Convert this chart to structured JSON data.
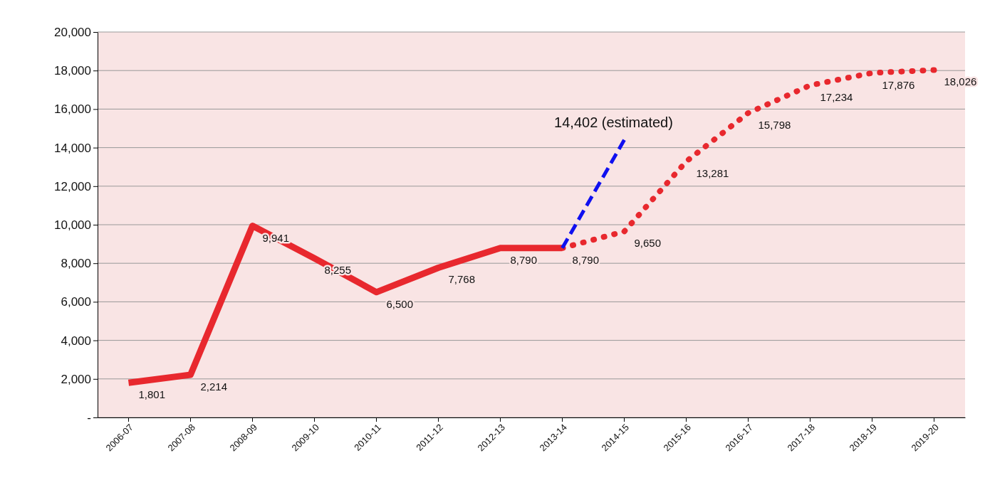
{
  "chart_data": {
    "type": "line",
    "categories": [
      "2006-07",
      "2007-08",
      "2008-09",
      "2009-10",
      "2010-11",
      "2011-12",
      "2012-13",
      "2013-14",
      "2014-15",
      "2015-16",
      "2016-17",
      "2017-18",
      "2018-19",
      "2019-20"
    ],
    "series": [
      {
        "color": "#e8282e",
        "line_style": "solid",
        "values": [
          1801,
          2214,
          9941,
          8255,
          6500,
          7768,
          8790,
          8790,
          null,
          null,
          null,
          null,
          null,
          null
        ],
        "value_labels": [
          "1,801",
          "2,214",
          "9,941",
          "8,255",
          "6,500",
          "7,768",
          "8,790",
          null,
          null,
          null,
          null,
          null,
          null,
          null
        ]
      },
      {
        "color": "#e8282e",
        "line_style": "dotted",
        "values": [
          null,
          null,
          null,
          null,
          null,
          null,
          null,
          8790,
          9650,
          13281,
          15798,
          17234,
          17876,
          18026
        ],
        "value_labels": [
          null,
          null,
          null,
          null,
          null,
          null,
          null,
          "8,790",
          "9,650",
          "13,281",
          "15,798",
          "17,234",
          "17,876",
          "18,026"
        ]
      },
      {
        "color": "#1010f0",
        "line_style": "dashed",
        "values": [
          null,
          null,
          null,
          null,
          null,
          null,
          null,
          8790,
          14402,
          null,
          null,
          null,
          null,
          null
        ]
      }
    ],
    "annotations": [
      {
        "text": "14,402 (estimated)",
        "x": "2014-15",
        "y": 14402
      }
    ],
    "ylim": [
      0,
      20000
    ],
    "yticks": [
      {
        "value": 0,
        "label": "-"
      },
      {
        "value": 2000,
        "label": "2,000"
      },
      {
        "value": 4000,
        "label": "4,000"
      },
      {
        "value": 6000,
        "label": "6,000"
      },
      {
        "value": 8000,
        "label": "8,000"
      },
      {
        "value": 10000,
        "label": "10,000"
      },
      {
        "value": 12000,
        "label": "12,000"
      },
      {
        "value": 14000,
        "label": "14,000"
      },
      {
        "value": 16000,
        "label": "16,000"
      },
      {
        "value": 18000,
        "label": "18,000"
      },
      {
        "value": 20000,
        "label": "20,000"
      }
    ],
    "grid": "y",
    "marker": "none"
  }
}
